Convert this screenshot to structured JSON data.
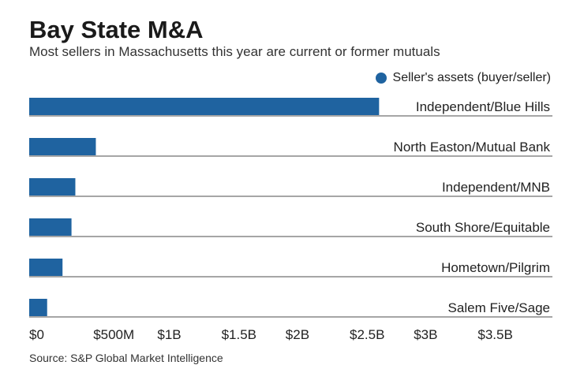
{
  "chart_data": {
    "type": "bar",
    "orientation": "horizontal",
    "title": "Bay State M&A",
    "subtitle": "Most sellers in Massachusetts this year are current or former mutuals",
    "legend": [
      {
        "label": "Seller's assets (buyer/seller)",
        "color": "#1f63a0"
      }
    ],
    "legend_position": "top-right",
    "categories": [
      "Independent/Blue Hills",
      "North Easton/Mutual Bank",
      "Independent/MNB",
      "South Shore/Equitable",
      "Hometown/Pilgrim",
      "Salem Five/Sage"
    ],
    "values": [
      2730,
      520,
      360,
      330,
      260,
      140
    ],
    "unit": "$M",
    "xlim": [
      0,
      3500
    ],
    "ticks": [
      0,
      500,
      1000,
      1500,
      2000,
      2500,
      3000,
      3500
    ],
    "tick_labels": [
      "$0",
      "$500M",
      "$1B",
      "$1.5B",
      "$2B",
      "$2.5B",
      "$3B",
      "$3.5B"
    ],
    "source": "Source: S&P Global Market Intelligence"
  }
}
